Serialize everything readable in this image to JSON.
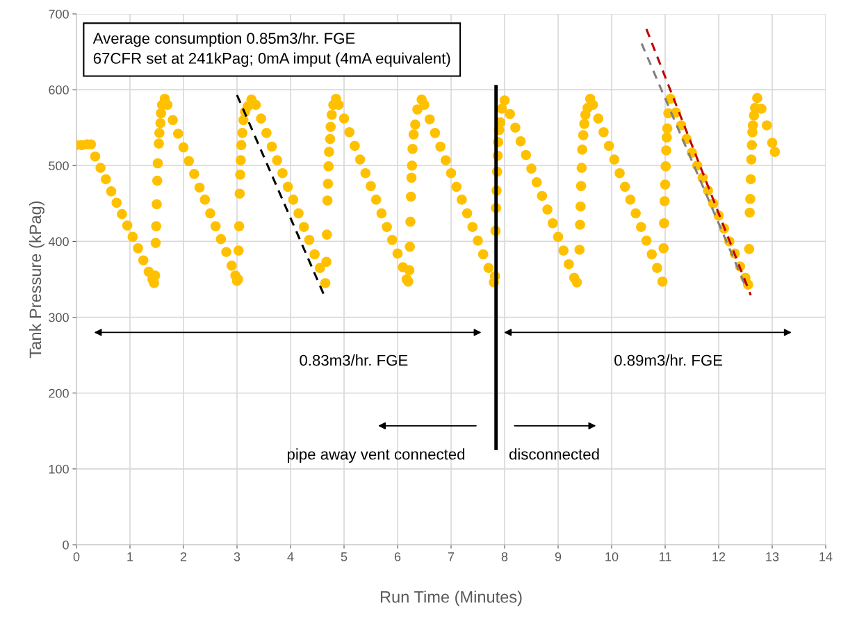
{
  "chart_data": {
    "type": "scatter",
    "xlabel": "Run Time (Minutes)",
    "ylabel": "Tank Pressure (kPag)",
    "xlim": [
      0,
      14
    ],
    "xticks": [
      0,
      1,
      2,
      3,
      4,
      5,
      6,
      7,
      8,
      9,
      10,
      11,
      12,
      13,
      14
    ],
    "ylim": [
      0,
      700
    ],
    "yticks": [
      0,
      100,
      200,
      300,
      400,
      500,
      600,
      700
    ],
    "grid": true,
    "legend": false,
    "marker": "circle",
    "annotations": [
      "Average consumption 0.85m3/hr. FGE\n67CFR set at 241kPag; 0mA imput (4mA equivalent)",
      "0.83m3/hr. FGE",
      "0.89m3/hr. FGE",
      "pipe away vent connected",
      "disconnected"
    ],
    "series": [
      {
        "color": "#ffc000",
        "x": [
          0,
          0.1,
          0.2,
          0.27,
          0.35,
          0.45,
          0.55,
          0.65,
          0.75,
          0.85,
          0.95,
          1.05,
          1.15,
          1.25,
          1.35,
          1.42,
          1.45,
          1.47,
          1.48,
          1.49,
          1.5,
          1.51,
          1.52,
          1.54,
          1.55,
          1.57,
          1.58,
          1.6,
          1.65,
          1.7,
          1.8,
          1.9,
          2.0,
          2.1,
          2.2,
          2.3,
          2.4,
          2.5,
          2.6,
          2.7,
          2.8,
          2.9,
          2.97,
          3.0,
          3.02,
          3.03,
          3.04,
          3.05,
          3.06,
          3.07,
          3.08,
          3.1,
          3.12,
          3.15,
          3.2,
          3.27,
          3.35,
          3.45,
          3.55,
          3.65,
          3.75,
          3.85,
          3.95,
          4.05,
          4.15,
          4.25,
          4.35,
          4.45,
          4.55,
          4.65,
          4.67,
          4.68,
          4.69,
          4.7,
          4.71,
          4.72,
          4.74,
          4.75,
          4.77,
          4.8,
          4.85,
          4.9,
          5.0,
          5.1,
          5.2,
          5.3,
          5.4,
          5.5,
          5.6,
          5.7,
          5.8,
          5.9,
          6.0,
          6.1,
          6.17,
          6.2,
          6.22,
          6.23,
          6.24,
          6.25,
          6.26,
          6.27,
          6.28,
          6.3,
          6.33,
          6.37,
          6.45,
          6.5,
          6.6,
          6.7,
          6.8,
          6.9,
          7.0,
          7.1,
          7.2,
          7.3,
          7.4,
          7.5,
          7.6,
          7.7,
          7.8,
          7.82,
          7.83,
          7.84,
          7.85,
          7.86,
          7.87,
          7.88,
          7.9,
          7.92,
          7.95,
          8.0,
          8.1,
          8.2,
          8.3,
          8.4,
          8.5,
          8.6,
          8.7,
          8.8,
          8.9,
          9.0,
          9.1,
          9.2,
          9.3,
          9.35,
          9.4,
          9.41,
          9.42,
          9.43,
          9.44,
          9.45,
          9.47,
          9.49,
          9.51,
          9.55,
          9.6,
          9.65,
          9.75,
          9.85,
          9.95,
          10.05,
          10.15,
          10.25,
          10.35,
          10.45,
          10.55,
          10.65,
          10.75,
          10.85,
          10.95,
          10.97,
          10.98,
          10.99,
          11.0,
          11.01,
          11.02,
          11.03,
          11.04,
          11.06,
          11.1,
          11.2,
          11.3,
          11.4,
          11.5,
          11.6,
          11.7,
          11.8,
          11.9,
          12.0,
          12.1,
          12.2,
          12.3,
          12.4,
          12.5,
          12.55,
          12.57,
          12.58,
          12.59,
          12.6,
          12.61,
          12.62,
          12.63,
          12.64,
          12.66,
          12.68,
          12.72,
          12.8,
          12.9,
          13.0,
          13.05
        ],
        "values": [
          527,
          527,
          528,
          528,
          512,
          497,
          482,
          466,
          451,
          436,
          421,
          406,
          391,
          375,
          360,
          350,
          345,
          355,
          398,
          420,
          449,
          480,
          503,
          529,
          543,
          556,
          569,
          580,
          588,
          580,
          560,
          542,
          524,
          506,
          489,
          471,
          455,
          437,
          420,
          403,
          386,
          368,
          355,
          348,
          350,
          388,
          420,
          463,
          488,
          507,
          527,
          543,
          560,
          571,
          578,
          587,
          580,
          562,
          543,
          525,
          507,
          490,
          472,
          455,
          437,
          419,
          402,
          383,
          365,
          345,
          373,
          409,
          454,
          476,
          499,
          518,
          535,
          551,
          567,
          580,
          588,
          580,
          562,
          544,
          526,
          508,
          490,
          473,
          455,
          437,
          419,
          402,
          384,
          366,
          350,
          347,
          362,
          393,
          426,
          459,
          484,
          500,
          522,
          541,
          554,
          574,
          587,
          580,
          561,
          543,
          525,
          507,
          490,
          472,
          455,
          437,
          419,
          401,
          383,
          365,
          346,
          354,
          414,
          444,
          467,
          492,
          513,
          531,
          547,
          557,
          575,
          586,
          568,
          550,
          532,
          514,
          496,
          478,
          460,
          442,
          424,
          406,
          388,
          370,
          352,
          346,
          389,
          422,
          446,
          473,
          497,
          521,
          540,
          555,
          567,
          576,
          588,
          580,
          562,
          544,
          526,
          508,
          490,
          472,
          455,
          437,
          419,
          401,
          383,
          365,
          347,
          391,
          424,
          453,
          475,
          499,
          520,
          537,
          549,
          569,
          588,
          570,
          553,
          535,
          517,
          500,
          484,
          467,
          450,
          434,
          417,
          400,
          384,
          367,
          352,
          343,
          390,
          438,
          456,
          482,
          508,
          527,
          544,
          553,
          566,
          576,
          589,
          575,
          553,
          530,
          518
        ]
      },
      {
        "type": "line",
        "marker": "none",
        "color": "#000000",
        "line_style": "dashed",
        "x": [
          3.0,
          4.64
        ],
        "values": [
          593,
          327
        ]
      },
      {
        "type": "line",
        "marker": "none",
        "color": "#808080",
        "line_style": "dashed",
        "x": [
          10.56,
          12.49
        ],
        "values": [
          661,
          343
        ]
      },
      {
        "type": "line",
        "marker": "none",
        "color": "#c00000",
        "line_style": "dashed",
        "x": [
          10.65,
          12.6
        ],
        "values": [
          680,
          329
        ]
      },
      {
        "type": "line",
        "marker": "none",
        "color": "#000000",
        "line_style": "solid",
        "x": [
          7.84,
          7.84
        ],
        "values": [
          604,
          127
        ]
      }
    ]
  }
}
